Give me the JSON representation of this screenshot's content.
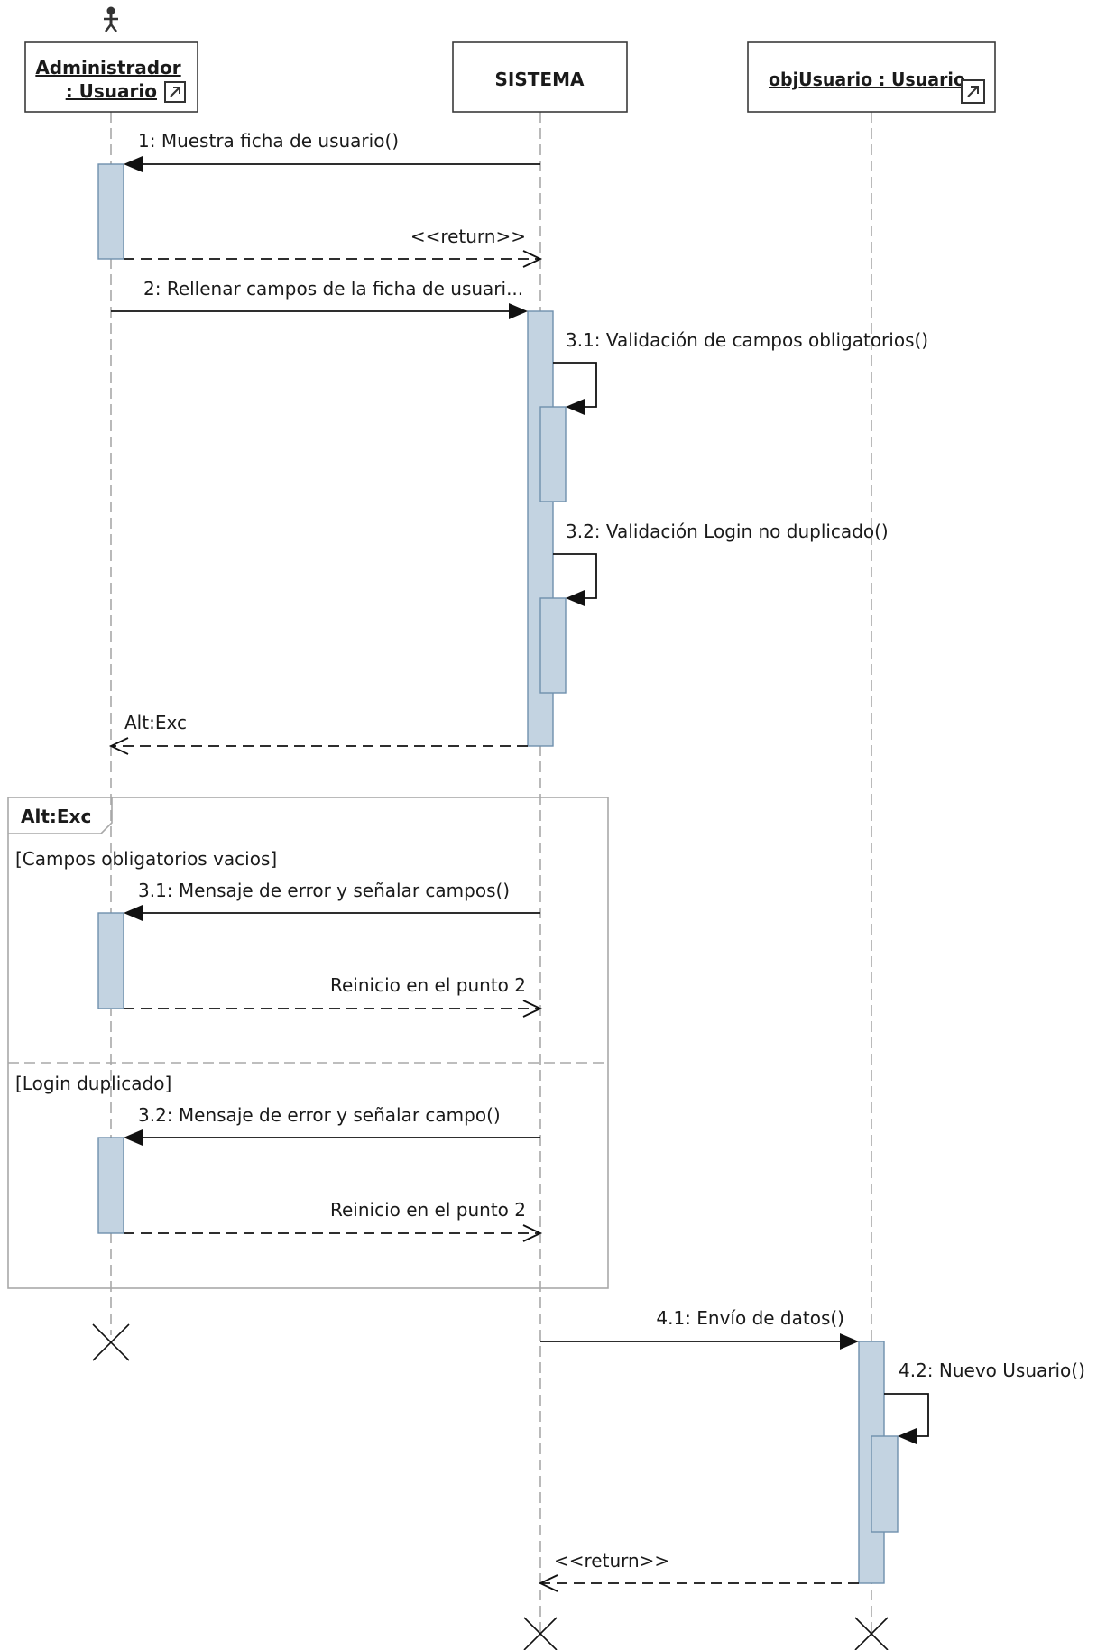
{
  "lifelines": {
    "admin": {
      "line1": "Administrador",
      "line2": ": Usuario"
    },
    "sistema": {
      "name": "SISTEMA"
    },
    "obj": {
      "name": "objUsuario : Usuario"
    }
  },
  "messages": {
    "m1": "1: Muestra ficha de usuario()",
    "r1": "<<return>>",
    "m2": "2: Rellenar campos de la ficha de usuari...",
    "m31": "3.1: Validación de campos obligatorios()",
    "m32": "3.2: Validación Login no duplicado()",
    "alt_return": "Alt:Exc",
    "m41": "4.1: Envío de datos()",
    "m42": "4.2: Nuevo Usuario()",
    "r4": "<<return>>"
  },
  "fragment": {
    "label": "Alt:Exc",
    "guard1": "[Campos obligatorios vacios]",
    "msg1": "3.1: Mensaje de error y señalar campos()",
    "ret1": "Reinicio en el punto 2",
    "guard2": "[Login duplicado]",
    "msg2": "3.2: Mensaje de error y señalar campo()",
    "ret2": "Reinicio en el punto 2"
  }
}
